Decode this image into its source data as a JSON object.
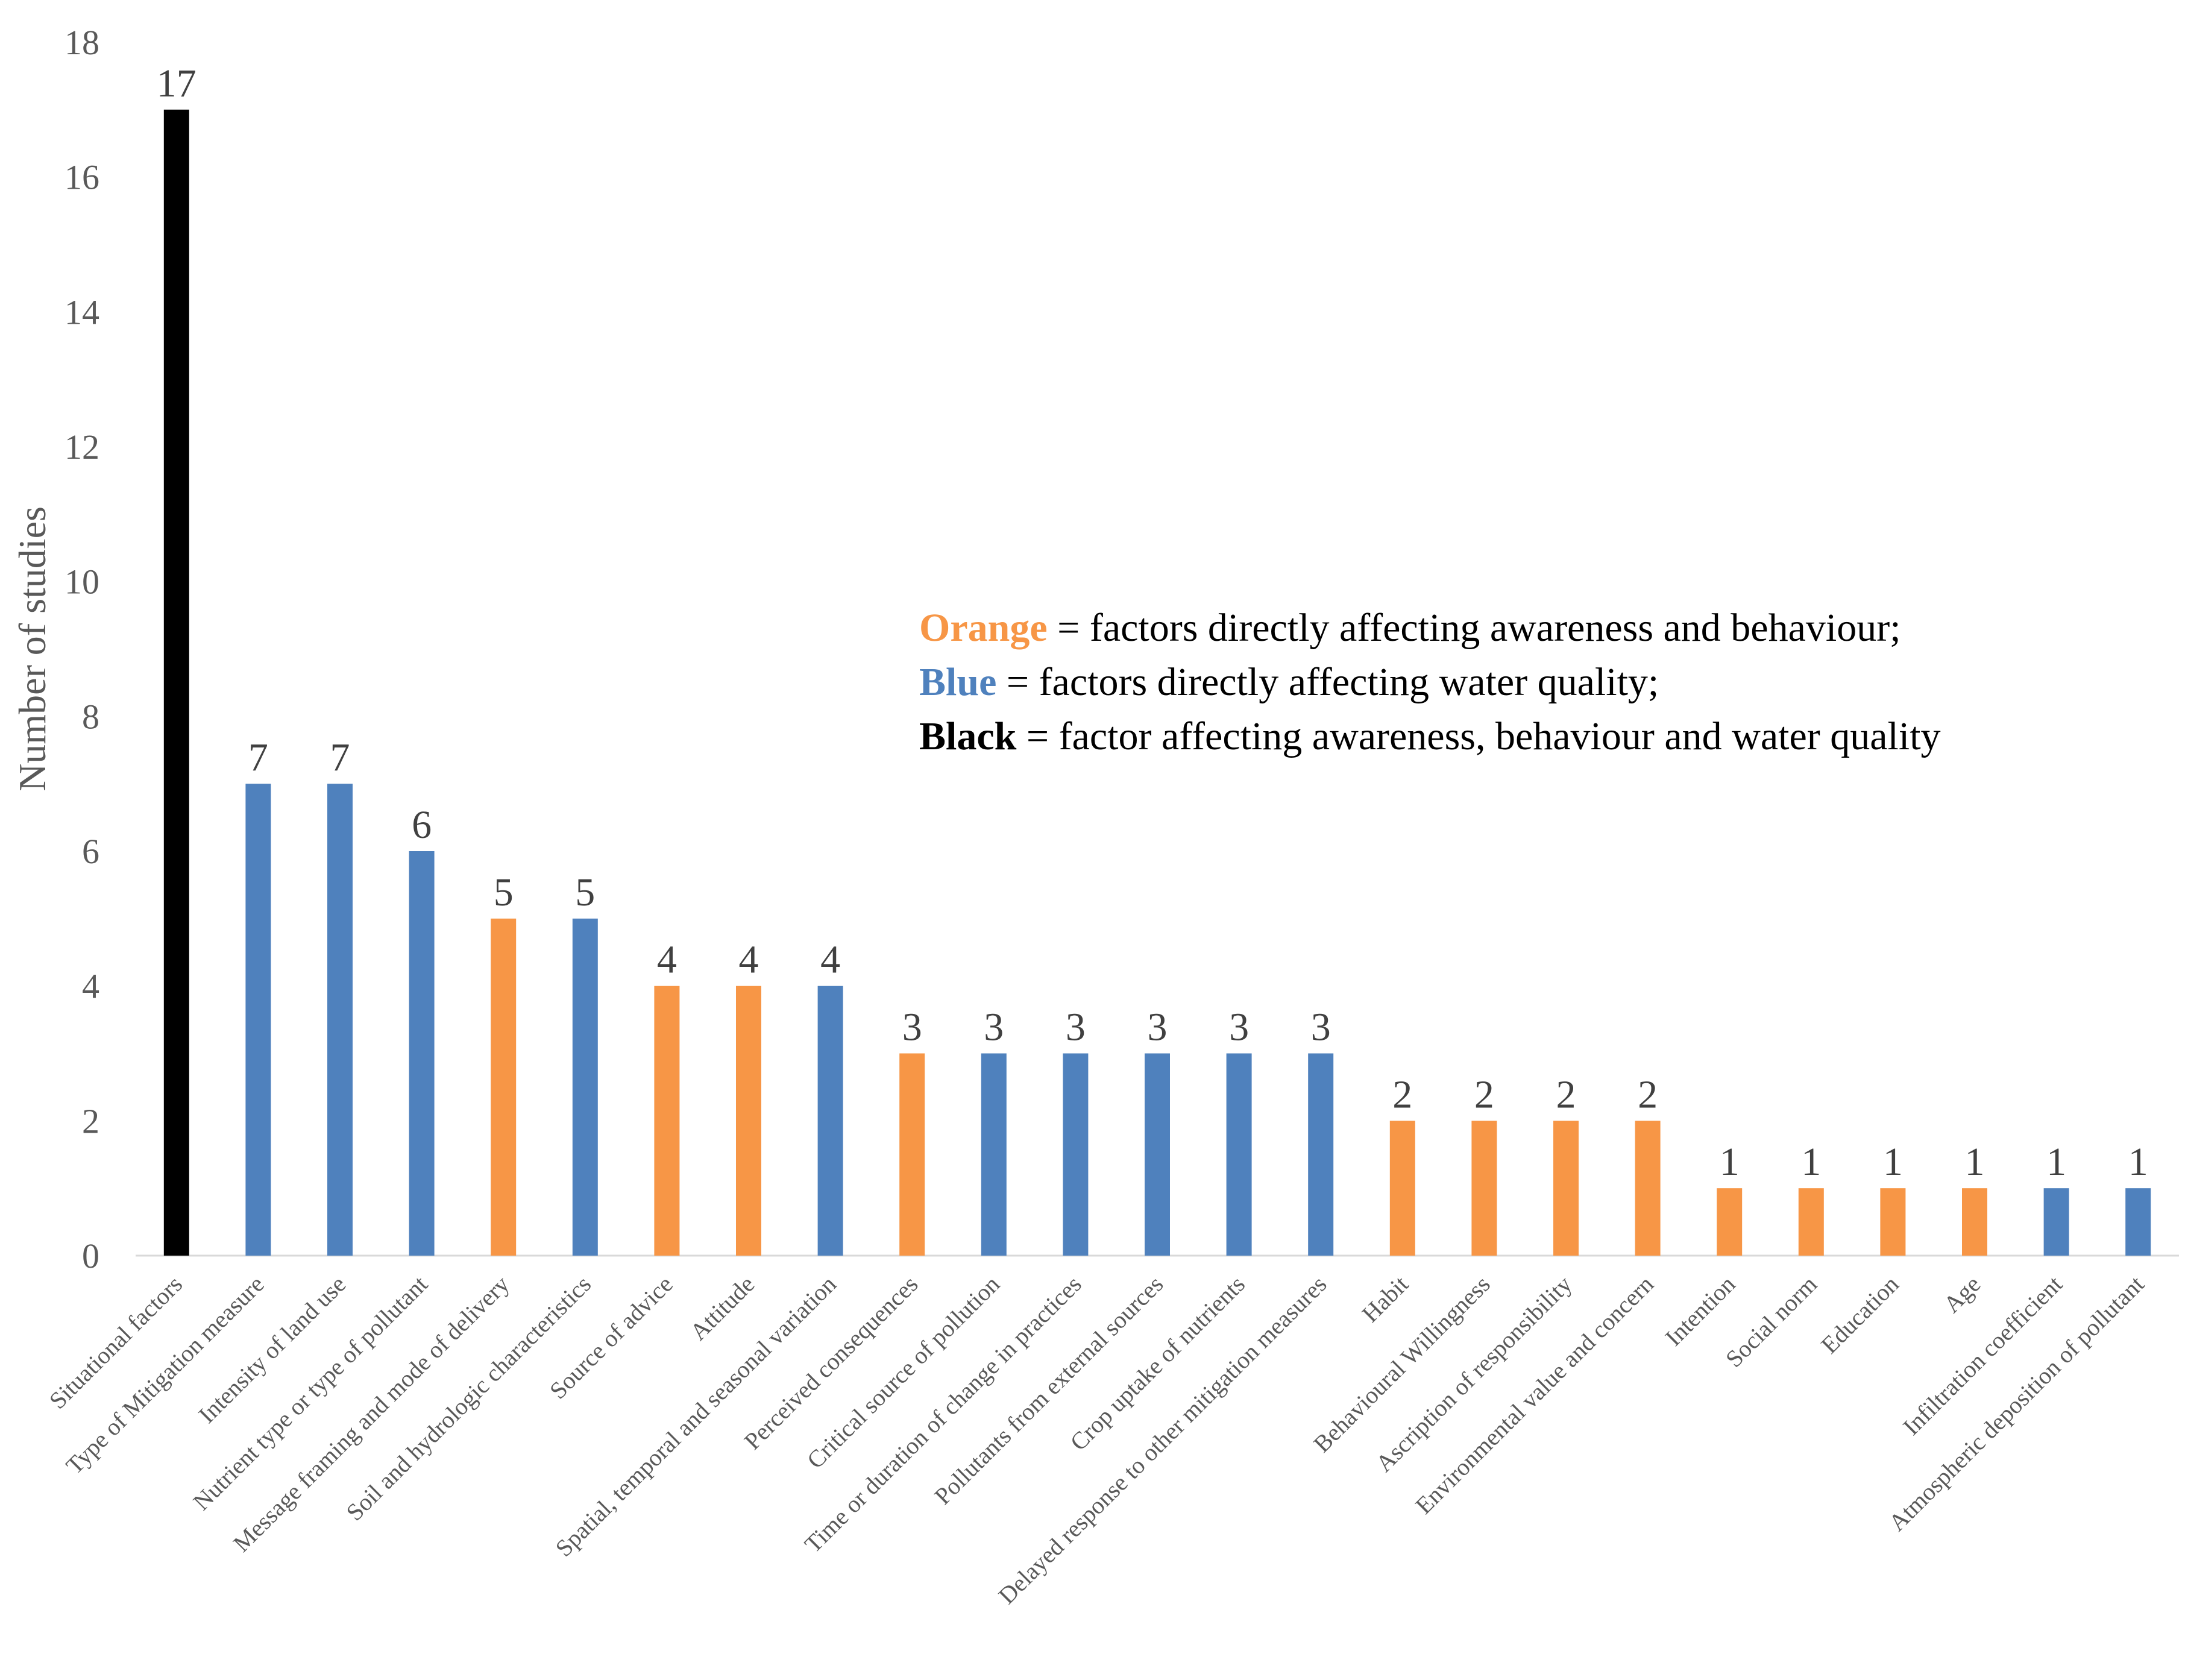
{
  "colors": {
    "orange": "#F79646",
    "blue": "#4F81BD",
    "black": "#000000"
  },
  "chart_data": {
    "type": "bar",
    "title": "",
    "xlabel": "",
    "ylabel": "Number of studies",
    "ylim": [
      0,
      18
    ],
    "yticks": [
      0,
      2,
      4,
      6,
      8,
      10,
      12,
      14,
      16,
      18
    ],
    "grid": false,
    "legend_position": "right-middle",
    "categories": [
      "Situational factors",
      "Type of  Mitigation measure",
      "Intensity of land use",
      "Nutrient type or type of pollutant",
      "Message framing and mode of delivery",
      "Soil and hydrologic characteristics",
      "Source of advice",
      "Attitude",
      "Spatial, temporal and seasonal variation",
      "Perceived consequences",
      "Critical source of pollution",
      "Time or duration of change in practices",
      "Pollutants from external sources",
      "Crop uptake of nutrients",
      "Delayed response to other mitigation  measures",
      "Habit",
      "Behavioural Willingness",
      "Ascription of responsibility",
      "Environmental value and concern",
      "Intention",
      "Social norm",
      "Education",
      "Age",
      "Infiltration coefficient",
      "Atmospheric deposition of pollutant"
    ],
    "values": [
      17,
      7,
      7,
      6,
      5,
      5,
      4,
      4,
      4,
      3,
      3,
      3,
      3,
      3,
      3,
      2,
      2,
      2,
      2,
      1,
      1,
      1,
      1,
      1,
      1
    ],
    "bar_groups": [
      "black",
      "blue",
      "blue",
      "blue",
      "orange",
      "blue",
      "orange",
      "orange",
      "blue",
      "orange",
      "blue",
      "blue",
      "blue",
      "blue",
      "blue",
      "orange",
      "orange",
      "orange",
      "orange",
      "orange",
      "orange",
      "orange",
      "orange",
      "blue",
      "blue"
    ],
    "legend": [
      {
        "key": "Orange",
        "text": " = factors directly affecting awareness and behaviour;",
        "color": "orange"
      },
      {
        "key": "Blue",
        "text": " = factors directly affecting water quality;",
        "color": "blue"
      },
      {
        "key": "Black",
        "text": " = factor affecting awareness, behaviour and water quality",
        "color": "black"
      }
    ]
  }
}
